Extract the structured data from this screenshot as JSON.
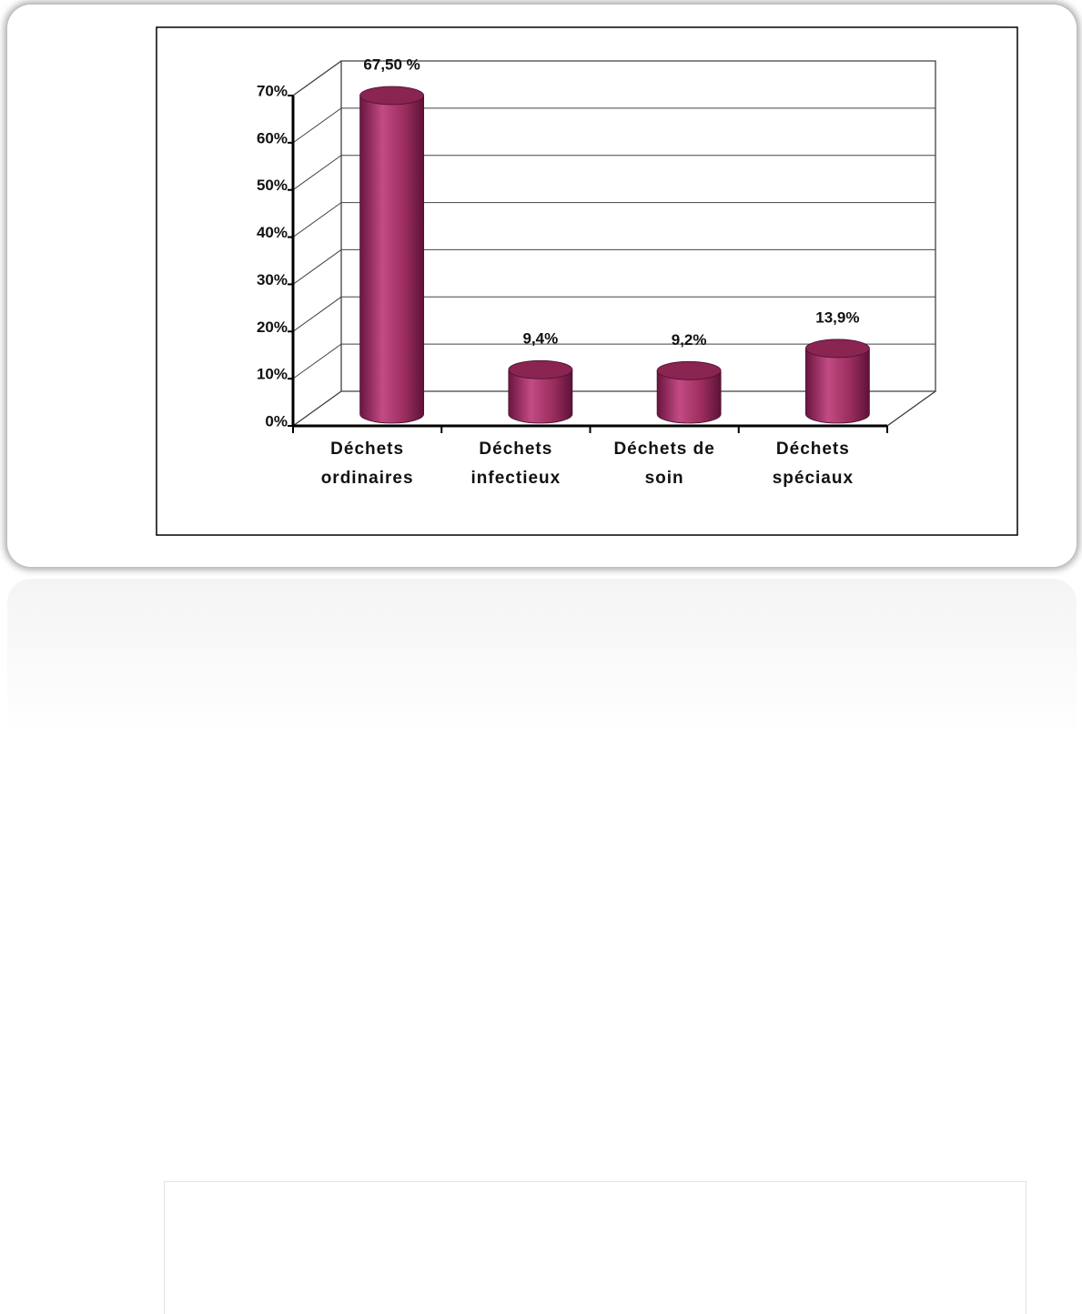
{
  "chart_data": {
    "type": "bar3d",
    "categories": [
      "Déchets ordinaires",
      "Déchets infectieux",
      "Déchets de soin",
      "Déchets spéciaux"
    ],
    "values": [
      67.5,
      9.4,
      9.2,
      13.9
    ],
    "value_labels": [
      "67,50 %",
      "9,4%",
      "9,2%",
      "13,9%"
    ],
    "color": "#9b2d5e",
    "ylim": [
      0,
      70
    ],
    "yticks": [
      {
        "value": 0,
        "label": "0%"
      },
      {
        "value": 10,
        "label": "10%"
      },
      {
        "value": 20,
        "label": "20%"
      },
      {
        "value": 30,
        "label": "30%"
      },
      {
        "value": 40,
        "label": "40%"
      },
      {
        "value": 50,
        "label": "50%"
      },
      {
        "value": 60,
        "label": "60%"
      },
      {
        "value": 70,
        "label": "70%"
      }
    ],
    "grid": true
  }
}
